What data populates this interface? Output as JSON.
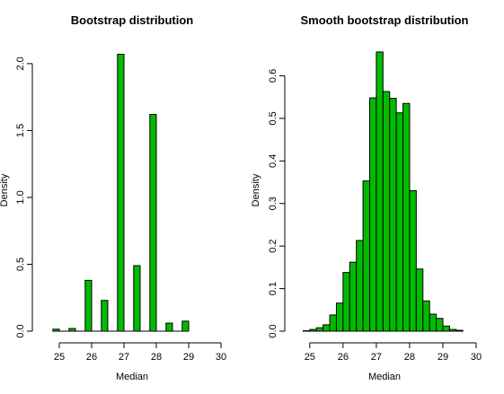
{
  "colors": {
    "bar_fill": "#00bb00",
    "bar_stroke": "#000000",
    "background": "#ffffff"
  },
  "chart_data": [
    {
      "type": "bar",
      "title": "Bootstrap distribution",
      "xlabel": "Median",
      "ylabel": "Density",
      "xlim": [
        24.5,
        30
      ],
      "ylim": [
        0,
        2.1
      ],
      "xticks": [
        "25",
        "26",
        "27",
        "28",
        "29",
        "30"
      ],
      "yticks": [
        "0.0",
        "0.5",
        "1.0",
        "1.5",
        "2.0"
      ],
      "bins": [
        {
          "x0": 24.8,
          "x1": 25.0,
          "value": 0.015
        },
        {
          "x0": 25.3,
          "x1": 25.5,
          "value": 0.02
        },
        {
          "x0": 25.8,
          "x1": 26.0,
          "value": 0.38
        },
        {
          "x0": 26.3,
          "x1": 26.5,
          "value": 0.23
        },
        {
          "x0": 26.8,
          "x1": 27.0,
          "value": 2.07
        },
        {
          "x0": 27.3,
          "x1": 27.5,
          "value": 0.49
        },
        {
          "x0": 27.8,
          "x1": 28.0,
          "value": 1.62
        },
        {
          "x0": 28.3,
          "x1": 28.5,
          "value": 0.06
        },
        {
          "x0": 28.8,
          "x1": 29.0,
          "value": 0.075
        }
      ]
    },
    {
      "type": "bar",
      "title": "Smooth bootstrap distribution",
      "xlabel": "Median",
      "ylabel": "Density",
      "xlim": [
        24.6,
        30
      ],
      "ylim": [
        0,
        0.66
      ],
      "xticks": [
        "25",
        "26",
        "27",
        "28",
        "29",
        "30"
      ],
      "yticks": [
        "0.0",
        "0.1",
        "0.2",
        "0.3",
        "0.4",
        "0.5",
        "0.6"
      ],
      "bin_start": 24.8,
      "bin_width": 0.2,
      "values": [
        0.001,
        0.004,
        0.008,
        0.015,
        0.038,
        0.066,
        0.138,
        0.162,
        0.213,
        0.353,
        0.548,
        0.656,
        0.563,
        0.547,
        0.513,
        0.535,
        0.33,
        0.146,
        0.071,
        0.04,
        0.03,
        0.012,
        0.004,
        0.002
      ]
    }
  ]
}
